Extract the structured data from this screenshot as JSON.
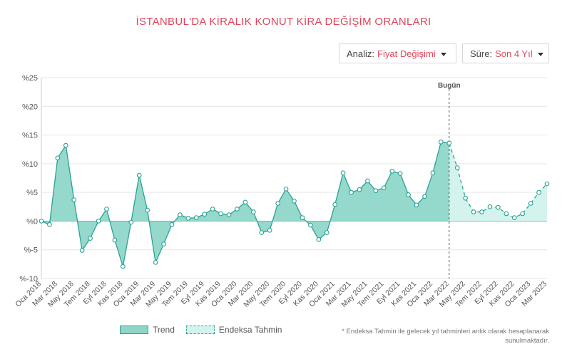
{
  "header": {
    "title": "İSTANBUL'DA KİRALIK KONUT KİRA DEĞİŞİM ORANLARI"
  },
  "controls": {
    "analiz": {
      "label": "Analiz:",
      "value": "Fiyat Değişimi"
    },
    "sure": {
      "label": "Süre:",
      "value": "Son 4 Yıl"
    }
  },
  "legend": {
    "trend": "Trend",
    "tahmin": "Endeksa Tahmin"
  },
  "footnote": "* Endeksa Tahmin ile gelecek yıl tahminleri anlık olarak hesaplanarak sunulmaktadır.",
  "colors": {
    "title": "#e0455a",
    "trend_line": "#2aa394",
    "trend_fill": "#8fd6c9",
    "forecast_fill": "#d4f2ee",
    "grid": "#e6e6e6"
  },
  "chart_data": {
    "type": "area",
    "title": "",
    "xlabel": "",
    "ylabel": "",
    "ylim": [
      -10,
      25
    ],
    "y_ticks": [
      "%-10",
      "%-5",
      "%0",
      "%5",
      "%10",
      "%15",
      "%20",
      "%25"
    ],
    "y_tick_values": [
      -10,
      -5,
      0,
      5,
      10,
      15,
      20,
      25
    ],
    "x_tick_labels": [
      "Oca 2018",
      "Mar 2018",
      "May 2018",
      "Tem 2018",
      "Eyl 2018",
      "Kas 2018",
      "Oca 2019",
      "Mar 2019",
      "May 2019",
      "Tem 2019",
      "Eyl 2019",
      "Kas 2019",
      "Oca 2020",
      "Mar 2020",
      "May 2020",
      "Tem 2020",
      "Eyl 2020",
      "Kas 2020",
      "Oca 2021",
      "Mar 2021",
      "May 2021",
      "Tem 2021",
      "Eyl 2021",
      "Kas 2021",
      "Oca 2022",
      "Mar 2022",
      "May 2022",
      "Tem 2022",
      "Eyl 2022",
      "Kas 2022",
      "Oca 2023",
      "Mar 2023"
    ],
    "x_start": "Oca 2018",
    "x_step": "1 ay",
    "annotation": {
      "label": "Bugün",
      "at": "Mar 2022"
    },
    "grid": true,
    "legend_position": "bottom",
    "series": [
      {
        "name": "Trend",
        "values": [
          0.0,
          -0.6,
          11.0,
          13.2,
          3.7,
          -5.1,
          -3.0,
          0.0,
          2.1,
          -3.3,
          -7.9,
          -0.2,
          8.0,
          1.9,
          -7.2,
          -4.0,
          -0.6,
          1.1,
          0.5,
          0.6,
          1.2,
          2.1,
          1.3,
          1.1,
          2.1,
          3.3,
          1.6,
          -2.0,
          -1.6,
          3.1,
          5.6,
          3.5,
          0.6,
          -0.7,
          -3.2,
          -2.0,
          2.9,
          8.4,
          5.0,
          5.5,
          7.0,
          5.3,
          5.8,
          8.7,
          8.3,
          4.6,
          2.8,
          4.3,
          8.4,
          13.8,
          13.6
        ]
      },
      {
        "name": "Endeksa Tahmin",
        "values": [
          null,
          null,
          null,
          null,
          null,
          null,
          null,
          null,
          null,
          null,
          null,
          null,
          null,
          null,
          null,
          null,
          null,
          null,
          null,
          null,
          null,
          null,
          null,
          null,
          null,
          null,
          null,
          null,
          null,
          null,
          null,
          null,
          null,
          null,
          null,
          null,
          null,
          null,
          null,
          null,
          null,
          null,
          null,
          null,
          null,
          null,
          null,
          null,
          null,
          null,
          13.6,
          9.3,
          4.0,
          1.6,
          1.6,
          2.5,
          2.4,
          1.3,
          0.6,
          1.3,
          3.1,
          5.0,
          6.5
        ]
      }
    ]
  }
}
